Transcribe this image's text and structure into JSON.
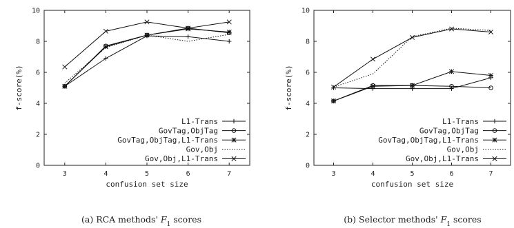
{
  "chart_data": [
    {
      "type": "line",
      "caption_prefix": "(a) RCA methods' ",
      "caption_math": "F",
      "caption_sub": "1",
      "caption_suffix": " scores",
      "xlabel": "confusion set size",
      "ylabel": "f-score(%)",
      "x": [
        3,
        4,
        5,
        6,
        7
      ],
      "xlim": [
        2.5,
        7.5
      ],
      "ylim": [
        0,
        10
      ],
      "yticks": [
        0,
        2,
        4,
        6,
        8,
        10
      ],
      "grid": false,
      "legend_position": "bottom-right",
      "series": [
        {
          "name": "L1-Trans",
          "marker": "plus",
          "dash": "solid",
          "values": [
            5.1,
            6.9,
            8.35,
            8.3,
            8.0
          ]
        },
        {
          "name": "GovTag,ObjTag",
          "marker": "circle",
          "dash": "solid",
          "values": [
            5.1,
            7.7,
            8.4,
            8.85,
            8.55
          ]
        },
        {
          "name": "GovTag,ObjTag,L1-Trans",
          "marker": "star",
          "dash": "solid",
          "values": [
            5.1,
            7.65,
            8.4,
            8.8,
            8.6
          ]
        },
        {
          "name": "Gov,Obj",
          "marker": "none",
          "dash": "dotted",
          "values": [
            5.3,
            7.6,
            8.4,
            8.0,
            8.45
          ]
        },
        {
          "name": "Gov,Obj,L1-Trans",
          "marker": "cross",
          "dash": "solid",
          "values": [
            6.35,
            8.65,
            9.25,
            8.85,
            9.25
          ]
        }
      ]
    },
    {
      "type": "line",
      "caption_prefix": "(b) Selector methods' ",
      "caption_math": "F",
      "caption_sub": "1",
      "caption_suffix": " scores",
      "xlabel": "confusion set size",
      "ylabel": "f-score(%)",
      "x": [
        3,
        4,
        5,
        6,
        7
      ],
      "xlim": [
        2.5,
        7.5
      ],
      "ylim": [
        0,
        10
      ],
      "yticks": [
        0,
        2,
        4,
        6,
        8,
        10
      ],
      "grid": false,
      "legend_position": "bottom-right",
      "series": [
        {
          "name": "L1-Trans",
          "marker": "plus",
          "dash": "solid",
          "values": [
            5.0,
            4.95,
            4.95,
            4.95,
            5.65
          ]
        },
        {
          "name": "GovTag,ObjTag",
          "marker": "circle",
          "dash": "solid",
          "values": [
            4.15,
            5.15,
            5.15,
            5.1,
            5.0
          ]
        },
        {
          "name": "GovTag,ObjTag,L1-Trans",
          "marker": "star",
          "dash": "solid",
          "values": [
            4.15,
            5.1,
            5.15,
            6.05,
            5.8
          ]
        },
        {
          "name": "Gov,Obj",
          "marker": "none",
          "dash": "dotted",
          "values": [
            5.05,
            5.9,
            8.3,
            8.85,
            8.7
          ]
        },
        {
          "name": "Gov,Obj,L1-Trans",
          "marker": "cross",
          "dash": "solid",
          "values": [
            5.05,
            6.85,
            8.25,
            8.8,
            8.6
          ]
        }
      ]
    }
  ]
}
